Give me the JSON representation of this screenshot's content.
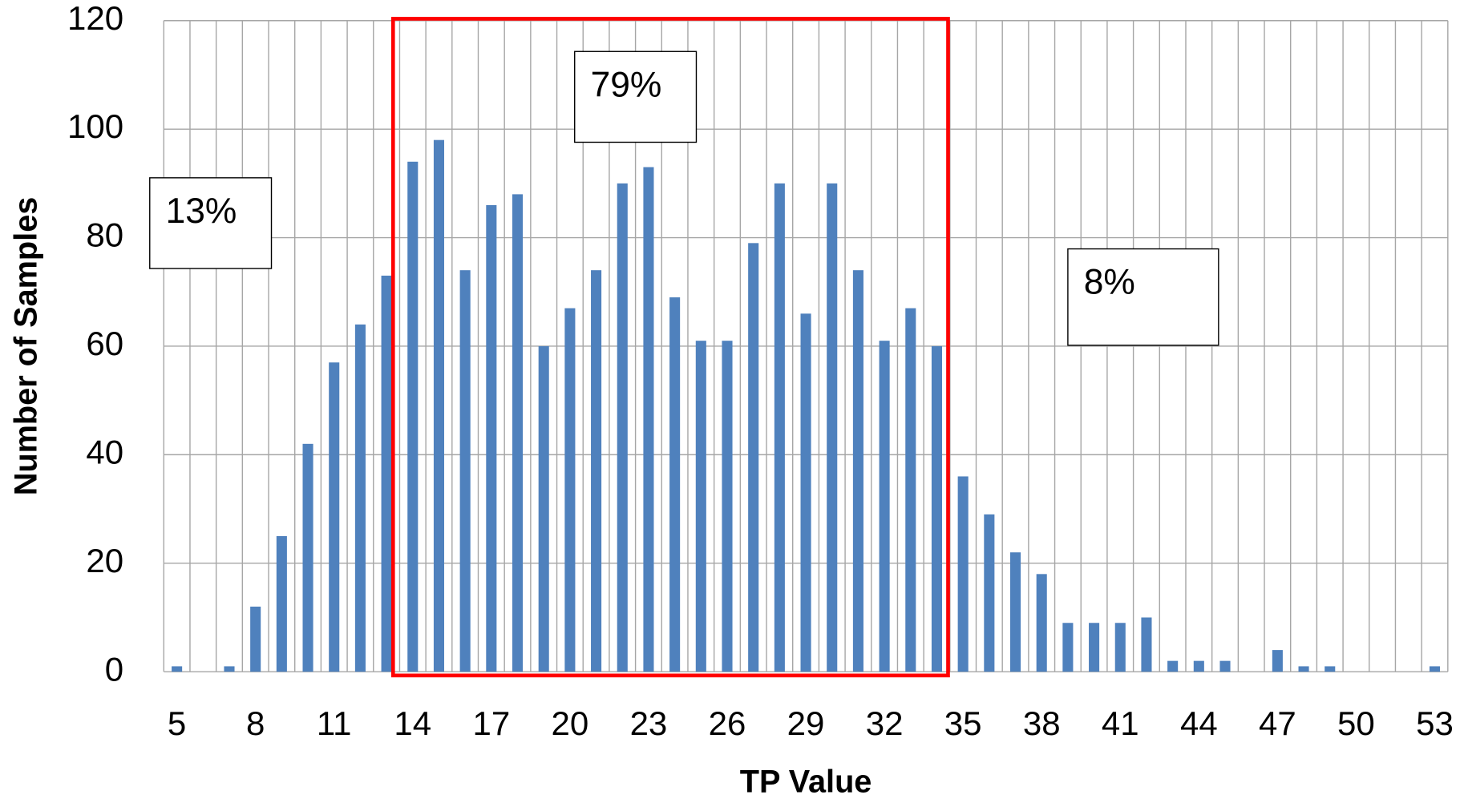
{
  "chart_data": {
    "type": "bar",
    "x_label": "TP Value",
    "y_label": "Number of Samples",
    "categories": [
      5,
      null,
      null,
      8,
      null,
      null,
      11,
      null,
      null,
      14,
      null,
      null,
      17,
      null,
      null,
      20,
      null,
      null,
      23,
      null,
      null,
      26,
      null,
      null,
      29,
      null,
      null,
      32,
      null,
      null,
      35,
      null,
      null,
      38,
      null,
      null,
      41,
      null,
      null,
      44,
      null,
      null,
      47,
      null,
      null,
      50,
      null,
      null,
      53
    ],
    "values": [
      1,
      0,
      1,
      12,
      25,
      42,
      57,
      64,
      73,
      94,
      98,
      74,
      86,
      88,
      60,
      67,
      74,
      90,
      93,
      69,
      61,
      61,
      79,
      90,
      66,
      90,
      74,
      61,
      67,
      60,
      36,
      29,
      22,
      18,
      9,
      9,
      9,
      10,
      2,
      2,
      2,
      0,
      4,
      1,
      1,
      0,
      0,
      0,
      1
    ],
    "color": "#4f81bd",
    "ylim": [
      0,
      120
    ],
    "yticks": [
      0,
      20,
      40,
      60,
      80,
      100,
      120
    ],
    "grid": true,
    "annotations": [
      "13%",
      "79%",
      "8%"
    ]
  }
}
